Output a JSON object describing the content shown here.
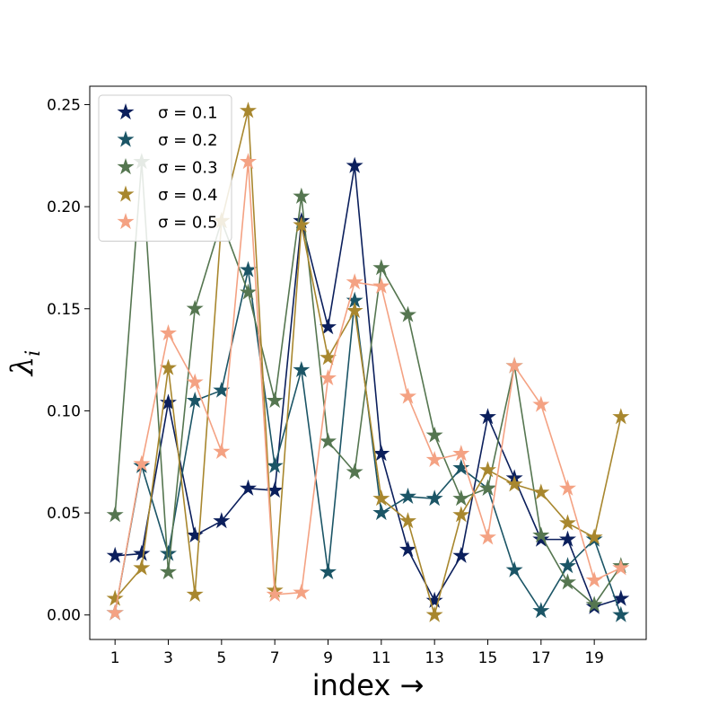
{
  "chart_data": {
    "type": "line",
    "marker": "star",
    "xlabel": "index →",
    "ylabel_main": "λ",
    "ylabel_sub": "i",
    "x": [
      1,
      2,
      3,
      4,
      5,
      6,
      7,
      8,
      9,
      10,
      11,
      12,
      13,
      14,
      15,
      16,
      17,
      18,
      19,
      20
    ],
    "xticks": [
      1,
      3,
      5,
      7,
      9,
      11,
      13,
      15,
      17,
      19
    ],
    "xlim": [
      0.05,
      20.95
    ],
    "yticks": [
      0.0,
      0.05,
      0.1,
      0.15,
      0.2,
      0.25
    ],
    "ytick_labels": [
      "0.00",
      "0.05",
      "0.10",
      "0.15",
      "0.20",
      "0.25"
    ],
    "ylim": [
      -0.012,
      0.259
    ],
    "grid": false,
    "legend_position": "upper-left",
    "series": [
      {
        "name": "σ = 0.1",
        "color": "#0b1f5c",
        "values": [
          0.029,
          0.03,
          0.104,
          0.039,
          0.046,
          0.062,
          0.061,
          0.193,
          0.141,
          0.22,
          0.079,
          0.032,
          0.007,
          0.029,
          0.097,
          0.067,
          0.037,
          0.037,
          0.004,
          0.008
        ]
      },
      {
        "name": "σ = 0.2",
        "color": "#1b5566",
        "values": [
          0.001,
          0.073,
          0.03,
          0.105,
          0.11,
          0.169,
          0.073,
          0.12,
          0.021,
          0.154,
          0.05,
          0.058,
          0.057,
          0.072,
          0.062,
          0.022,
          0.002,
          0.024,
          0.037,
          0.0
        ]
      },
      {
        "name": "σ = 0.3",
        "color": "#557650",
        "values": [
          0.049,
          0.222,
          0.021,
          0.15,
          0.193,
          0.158,
          0.105,
          0.205,
          0.085,
          0.07,
          0.17,
          0.147,
          0.088,
          0.057,
          0.062,
          0.122,
          0.039,
          0.016,
          0.005,
          0.024
        ]
      },
      {
        "name": "σ = 0.4",
        "color": "#a8872e",
        "values": [
          0.008,
          0.023,
          0.121,
          0.01,
          0.193,
          0.247,
          0.012,
          0.191,
          0.126,
          0.149,
          0.057,
          0.046,
          0.0,
          0.049,
          0.071,
          0.064,
          0.06,
          0.045,
          0.038,
          0.097
        ]
      },
      {
        "name": "σ = 0.5",
        "color": "#f4a283",
        "values": [
          0.001,
          0.074,
          0.138,
          0.114,
          0.08,
          0.222,
          0.01,
          0.011,
          0.116,
          0.163,
          0.161,
          0.107,
          0.076,
          0.079,
          0.038,
          0.122,
          0.103,
          0.062,
          0.017,
          0.023
        ]
      }
    ]
  }
}
